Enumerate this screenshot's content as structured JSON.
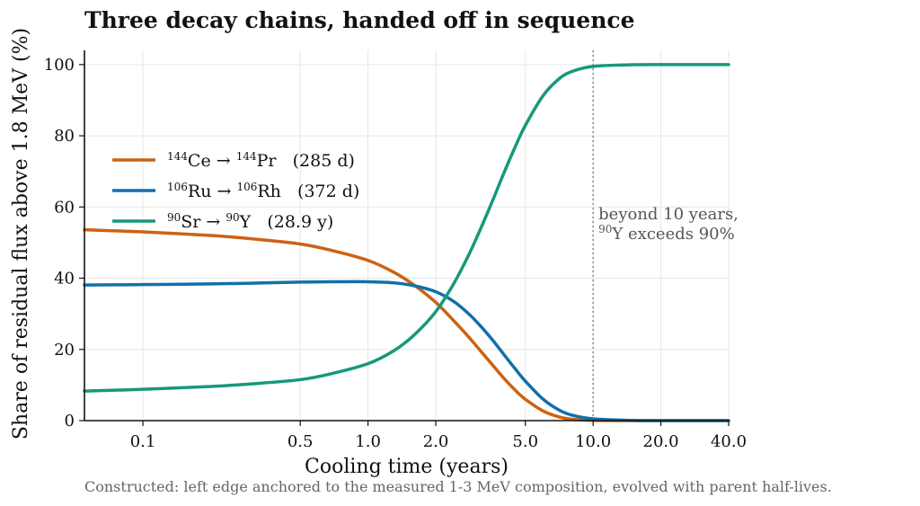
{
  "chart_data": {
    "type": "line",
    "title": "Three decay chains, handed off in sequence",
    "xlabel": "Cooling time (years)",
    "ylabel": "Share of residual flux above 1.8 MeV (%)",
    "x_scale": "log",
    "xlim": [
      0.055,
      40
    ],
    "ylim": [
      0,
      104
    ],
    "x_ticks": [
      0.1,
      0.5,
      1.0,
      2.0,
      5.0,
      10.0,
      20.0,
      40.0
    ],
    "x_tick_labels": [
      "0.1",
      "0.5",
      "1.0",
      "2.0",
      "5.0",
      "10.0",
      "20.0",
      "40.0"
    ],
    "y_ticks": [
      0,
      20,
      40,
      60,
      80,
      100
    ],
    "y_tick_labels": [
      "0",
      "20",
      "40",
      "60",
      "80",
      "100"
    ],
    "grid": true,
    "legend_position": "upper-left",
    "x": [
      0.055,
      0.1,
      0.2,
      0.3,
      0.5,
      0.7,
      1.0,
      1.3,
      1.6,
      2.0,
      2.4,
      2.8,
      3.2,
      3.6,
      4.0,
      4.5,
      5.0,
      6.0,
      7.0,
      8.0,
      10.0,
      15.0,
      20.0,
      30.0,
      40.0
    ],
    "series": [
      {
        "name_parts": [
          {
            "sup": "144",
            "text": "Ce"
          },
          {
            "text": " → "
          },
          {
            "sup": "144",
            "text": "Pr"
          },
          {
            "text": "   (285 d)"
          }
        ],
        "color": "#cc6213",
        "values": [
          53.6,
          53.0,
          52.0,
          51.1,
          49.6,
          47.7,
          45.0,
          41.7,
          38.1,
          33.2,
          28.1,
          23.5,
          19.2,
          15.4,
          12.0,
          8.6,
          6.0,
          2.7,
          1.1,
          0.4,
          0.05,
          0.0,
          0.0,
          0.0,
          0.0
        ]
      },
      {
        "name_parts": [
          {
            "sup": "106",
            "text": "Ru"
          },
          {
            "text": " → "
          },
          {
            "sup": "106",
            "text": "Rh"
          },
          {
            "text": "   (372 d)"
          }
        ],
        "color": "#1170aa",
        "values": [
          38.1,
          38.2,
          38.4,
          38.6,
          38.9,
          39.0,
          39.0,
          38.7,
          37.9,
          36.2,
          33.5,
          30.0,
          26.2,
          22.4,
          18.7,
          14.6,
          11.1,
          6.0,
          3.1,
          1.6,
          0.5,
          0.05,
          0.0,
          0.0,
          0.0
        ]
      },
      {
        "name_parts": [
          {
            "sup": "90",
            "text": "Sr"
          },
          {
            "text": " → "
          },
          {
            "sup": "90",
            "text": "Y"
          },
          {
            "text": "   (28.9 y)"
          }
        ],
        "color": "#16997a",
        "values": [
          8.3,
          8.8,
          9.6,
          10.3,
          11.5,
          13.3,
          16.0,
          19.6,
          24.0,
          30.6,
          38.4,
          46.5,
          54.6,
          62.2,
          69.3,
          76.8,
          82.9,
          91.3,
          95.8,
          98.0,
          99.5,
          99.95,
          100.0,
          100.0,
          100.0
        ]
      }
    ],
    "reference_line": {
      "x": 10.0,
      "style": "dotted",
      "color": "#888888"
    },
    "annotation": {
      "line1": "beyond 10 years,",
      "line2_sup": "90",
      "line2_text": "Y exceeds 90%"
    },
    "caption": "Constructed: left edge anchored to the measured 1-3 MeV composition, evolved with parent half-lives."
  }
}
